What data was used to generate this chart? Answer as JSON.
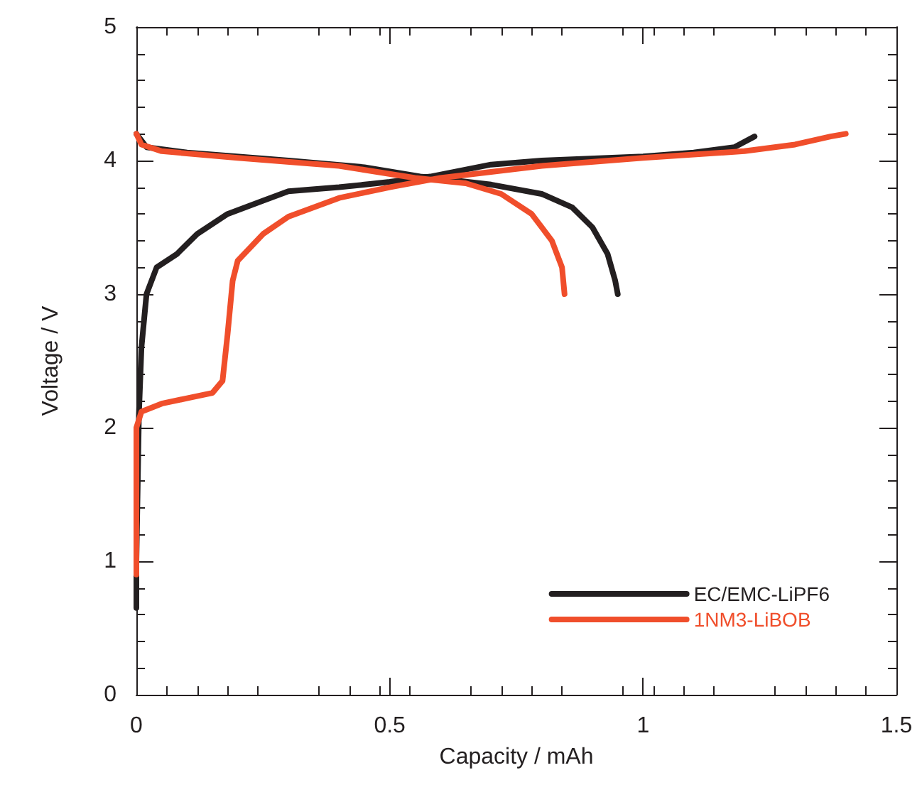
{
  "chart_data": {
    "type": "line",
    "xlabel": "Capacity / mAh",
    "ylabel": "Voltage / V",
    "xlim": [
      0,
      1.5
    ],
    "xticks": [
      0,
      0.5,
      1,
      1.5
    ],
    "ylim": [
      0,
      5
    ],
    "yticks": [
      0,
      1,
      2,
      3,
      4,
      5
    ],
    "grid": false,
    "legend": "bottom right",
    "marker": "none",
    "line_style": "solid",
    "series": [
      {
        "name": "EC/EMC-LiPF6",
        "color": "#231f20",
        "x": [
          0,
          0,
          0.005,
          0.01,
          0.02,
          0.04,
          0.08,
          0.12,
          0.18,
          0.25,
          0.3,
          0.4,
          0.5,
          0.58,
          0.7,
          0.8,
          1.0,
          1.1,
          1.18,
          1.22,
          null,
          0,
          0.02,
          0.1,
          0.3,
          0.45,
          0.56,
          0.7,
          0.8,
          0.86,
          0.9,
          0.93,
          0.945,
          0.95
        ],
        "values": [
          0.65,
          1.0,
          2.1,
          2.6,
          3.0,
          3.2,
          3.3,
          3.45,
          3.6,
          3.7,
          3.77,
          3.8,
          3.84,
          3.88,
          3.97,
          4.0,
          4.03,
          4.06,
          4.1,
          4.18,
          null,
          4.2,
          4.1,
          4.06,
          4.0,
          3.95,
          3.88,
          3.82,
          3.75,
          3.65,
          3.5,
          3.3,
          3.1,
          3.0
        ]
      },
      {
        "name": "1NM3-LiBOB",
        "color": "#f04e2b",
        "x": [
          0,
          0,
          0.01,
          0.05,
          0.1,
          0.15,
          0.17,
          0.18,
          0.19,
          0.2,
          0.25,
          0.3,
          0.4,
          0.5,
          0.6,
          0.8,
          1.0,
          1.2,
          1.3,
          1.37,
          1.4,
          null,
          0,
          0.01,
          0.05,
          0.2,
          0.4,
          0.55,
          0.65,
          0.72,
          0.78,
          0.82,
          0.84,
          0.845
        ],
        "values": [
          0.9,
          2.0,
          2.12,
          2.18,
          2.22,
          2.26,
          2.35,
          2.7,
          3.1,
          3.25,
          3.45,
          3.58,
          3.72,
          3.8,
          3.87,
          3.96,
          4.02,
          4.07,
          4.12,
          4.18,
          4.2,
          null,
          4.2,
          4.12,
          4.07,
          4.02,
          3.96,
          3.87,
          3.83,
          3.75,
          3.6,
          3.4,
          3.2,
          3.0
        ]
      }
    ]
  }
}
